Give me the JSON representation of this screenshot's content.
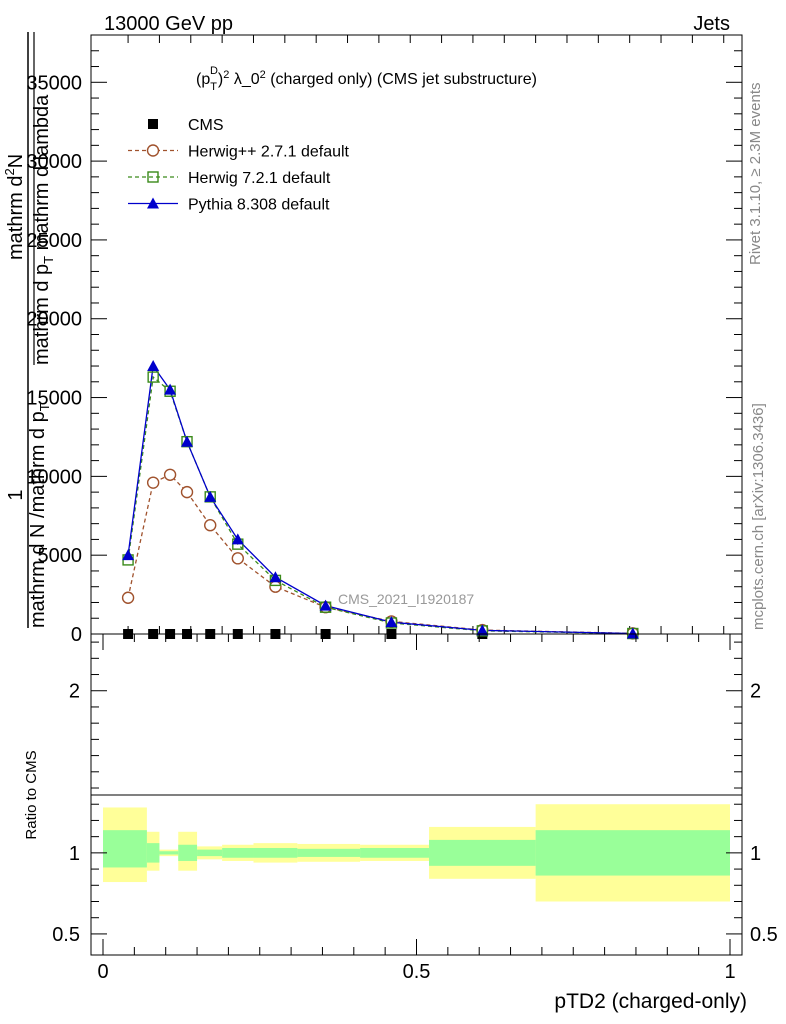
{
  "header": {
    "left": "13000 GeV pp",
    "right": "Jets"
  },
  "side_labels": {
    "rivet": "Rivet 3.1.10, ≥ 2.3M events",
    "mcplots": "mcplots.cern.ch [arXiv:1306.3436]"
  },
  "chart_data": [
    {
      "type": "line",
      "title": "(p_T^D)^2 λ_0^2 (charged only) (CMS jet substructure)",
      "title_parts": {
        "p": "(p",
        "sub": "T",
        "sup": "D",
        "rest": ")",
        "sup2": "2",
        "after": " λ_0",
        "sup3": "2",
        "tail": " (charged only) (CMS jet substructure)"
      },
      "ylabel": "1 / mathrm d N / mathrm d p_T mathrm d^2N / mathrm d p_T mathrm d lambda",
      "ylabel_parts": {
        "one": "1",
        "den": "mathrm d N /mathrm d p",
        "den_sub": "T",
        "num_top": "mathrm d",
        "num_sup": "2",
        "num_n": "N",
        "den2": "mathrm d p",
        "den2_sub": "T",
        "den2_tail": " mathrm d lambda"
      },
      "xlim": [
        0,
        1
      ],
      "ylim": [
        0,
        38000
      ],
      "yticks": [
        0,
        5000,
        10000,
        15000,
        20000,
        25000,
        30000,
        35000
      ],
      "ytick_labels": [
        "0",
        "5000",
        "10000",
        "15000",
        "20000",
        "25000",
        "30000",
        "35000"
      ],
      "watermark": "CMS_2021_I1920187",
      "series": [
        {
          "name": "CMS",
          "marker": "square",
          "color": "#000000",
          "x": [
            0.04,
            0.08,
            0.107,
            0.134,
            0.171,
            0.215,
            0.275,
            0.355,
            0.46,
            0.605,
            0.845
          ],
          "y": [
            0,
            0,
            0,
            0,
            0,
            0,
            0,
            0,
            0,
            0,
            0
          ]
        },
        {
          "name": "Herwig++ 2.7.1 default",
          "marker": "circle-open",
          "color": "#a0522d",
          "dash": true,
          "x": [
            0.04,
            0.08,
            0.107,
            0.134,
            0.171,
            0.215,
            0.275,
            0.355,
            0.46,
            0.605,
            0.845
          ],
          "y": [
            2300,
            9600,
            10100,
            9000,
            6900,
            4800,
            3000,
            1700,
            800,
            250,
            40
          ]
        },
        {
          "name": "Herwig 7.2.1 default",
          "marker": "square-open",
          "color": "#3a8a1a",
          "dash": true,
          "x": [
            0.04,
            0.08,
            0.107,
            0.134,
            0.171,
            0.215,
            0.275,
            0.355,
            0.46,
            0.605,
            0.845
          ],
          "y": [
            4700,
            16300,
            15400,
            12200,
            8700,
            5700,
            3400,
            1700,
            700,
            200,
            30
          ]
        },
        {
          "name": "Pythia 8.308 default",
          "marker": "triangle",
          "color": "#0000cc",
          "dash": false,
          "x": [
            0.04,
            0.08,
            0.107,
            0.134,
            0.171,
            0.215,
            0.275,
            0.355,
            0.46,
            0.605,
            0.845
          ],
          "y": [
            5000,
            17000,
            15500,
            12200,
            8700,
            6000,
            3600,
            1800,
            750,
            230,
            30
          ]
        }
      ]
    },
    {
      "type": "area",
      "ylabel": "Ratio to CMS",
      "xlabel": "pTD2 (charged-only)",
      "xlim": [
        0,
        1
      ],
      "ylim": [
        0.37,
        2.35
      ],
      "xticks": [
        0,
        0.5,
        1
      ],
      "xtick_labels": [
        "0",
        "0.5",
        "1"
      ],
      "yticks": [
        0.5,
        1,
        2
      ],
      "ytick_labels": [
        "0.5",
        "1",
        "2"
      ],
      "bands": [
        {
          "x0": 0.0,
          "x1": 0.07,
          "inner": [
            0.91,
            1.14
          ],
          "outer": [
            0.82,
            1.28
          ]
        },
        {
          "x0": 0.07,
          "x1": 0.09,
          "inner": [
            0.94,
            1.06
          ],
          "outer": [
            0.89,
            1.13
          ]
        },
        {
          "x0": 0.09,
          "x1": 0.12,
          "inner": [
            0.99,
            1.01
          ],
          "outer": [
            0.98,
            1.02
          ]
        },
        {
          "x0": 0.12,
          "x1": 0.15,
          "inner": [
            0.95,
            1.05
          ],
          "outer": [
            0.89,
            1.13
          ]
        },
        {
          "x0": 0.15,
          "x1": 0.19,
          "inner": [
            0.98,
            1.02
          ],
          "outer": [
            0.96,
            1.04
          ]
        },
        {
          "x0": 0.19,
          "x1": 0.24,
          "inner": [
            0.97,
            1.03
          ],
          "outer": [
            0.95,
            1.05
          ]
        },
        {
          "x0": 0.24,
          "x1": 0.31,
          "inner": [
            0.97,
            1.03
          ],
          "outer": [
            0.94,
            1.06
          ]
        },
        {
          "x0": 0.31,
          "x1": 0.41,
          "inner": [
            0.975,
            1.025
          ],
          "outer": [
            0.945,
            1.055
          ]
        },
        {
          "x0": 0.41,
          "x1": 0.52,
          "inner": [
            0.97,
            1.03
          ],
          "outer": [
            0.95,
            1.05
          ]
        },
        {
          "x0": 0.52,
          "x1": 0.69,
          "inner": [
            0.92,
            1.08
          ],
          "outer": [
            0.84,
            1.16
          ]
        },
        {
          "x0": 0.69,
          "x1": 1.0,
          "inner": [
            0.86,
            1.14
          ],
          "outer": [
            0.7,
            1.3
          ]
        }
      ]
    }
  ],
  "colors": {
    "band_inner": "#99ff99",
    "band_outer": "#ffff99",
    "axis": "#000000",
    "watermark": "#999999",
    "side_label": "#888888"
  }
}
